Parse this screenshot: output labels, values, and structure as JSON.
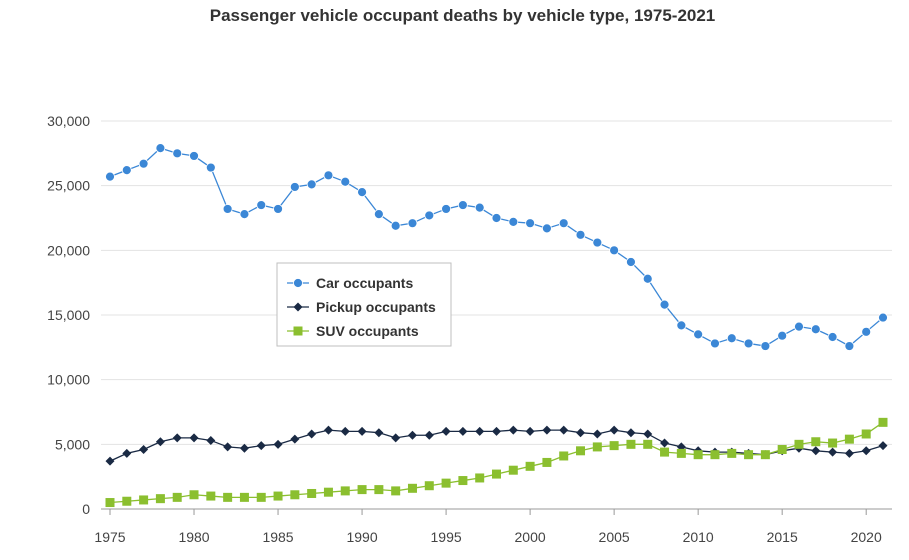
{
  "chart_data": {
    "type": "line",
    "title": "Passenger vehicle occupant deaths by vehicle type, 1975-2021",
    "xlabel": "",
    "ylabel": "",
    "xlim": [
      1975,
      2021
    ],
    "ylim": [
      0,
      30000
    ],
    "x_ticks": [
      "1975",
      "1980",
      "1985",
      "1990",
      "1995",
      "2000",
      "2005",
      "2010",
      "2015",
      "2020"
    ],
    "y_ticks": [
      "0",
      "5,000",
      "10,000",
      "15,000",
      "20,000",
      "25,000",
      "30,000"
    ],
    "grid": "horizontal",
    "legend_position": "center-left",
    "x": [
      1975,
      1976,
      1977,
      1978,
      1979,
      1980,
      1981,
      1982,
      1983,
      1984,
      1985,
      1986,
      1987,
      1988,
      1989,
      1990,
      1991,
      1992,
      1993,
      1994,
      1995,
      1996,
      1997,
      1998,
      1999,
      2000,
      2001,
      2002,
      2003,
      2004,
      2005,
      2006,
      2007,
      2008,
      2009,
      2010,
      2011,
      2012,
      2013,
      2014,
      2015,
      2016,
      2017,
      2018,
      2019,
      2020,
      2021
    ],
    "series": [
      {
        "name": "Car occupants",
        "color": "#3b87d6",
        "marker": "circle",
        "values": [
          25700,
          26200,
          26700,
          27900,
          27500,
          27300,
          26400,
          23200,
          22800,
          23500,
          23200,
          24900,
          25100,
          25800,
          25300,
          24500,
          22800,
          21900,
          22100,
          22700,
          23200,
          23500,
          23300,
          22500,
          22200,
          22100,
          21700,
          22100,
          21200,
          20600,
          20000,
          19100,
          17800,
          15800,
          14200,
          13500,
          12800,
          13200,
          12800,
          12600,
          13400,
          14100,
          13900,
          13300,
          12600,
          13700,
          14800
        ]
      },
      {
        "name": "Pickup occupants",
        "color": "#1a2a44",
        "marker": "diamond",
        "values": [
          3700,
          4300,
          4600,
          5200,
          5500,
          5500,
          5300,
          4800,
          4700,
          4900,
          5000,
          5400,
          5800,
          6100,
          6000,
          6000,
          5900,
          5500,
          5700,
          5700,
          6000,
          6000,
          6000,
          6000,
          6100,
          6000,
          6100,
          6100,
          5900,
          5800,
          6100,
          5900,
          5800,
          5100,
          4800,
          4500,
          4400,
          4400,
          4300,
          4200,
          4500,
          4700,
          4500,
          4400,
          4300,
          4500,
          4900
        ]
      },
      {
        "name": "SUV occupants",
        "color": "#8bbf2f",
        "marker": "square",
        "values": [
          500,
          600,
          700,
          800,
          900,
          1100,
          1000,
          900,
          900,
          900,
          1000,
          1100,
          1200,
          1300,
          1400,
          1500,
          1500,
          1400,
          1600,
          1800,
          2000,
          2200,
          2400,
          2700,
          3000,
          3300,
          3600,
          4100,
          4500,
          4800,
          4900,
          5000,
          5000,
          4400,
          4300,
          4200,
          4200,
          4300,
          4200,
          4200,
          4600,
          5000,
          5200,
          5100,
          5400,
          5800,
          6700
        ]
      }
    ]
  }
}
